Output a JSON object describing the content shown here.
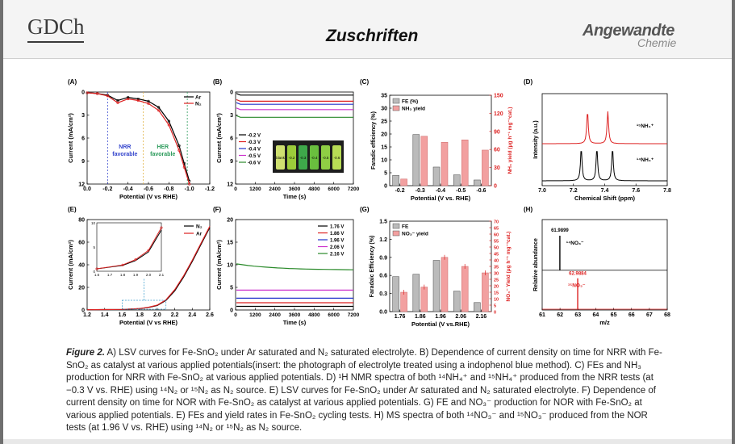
{
  "header": {
    "society": "GDCh",
    "section": "Zuschriften",
    "journal_main": "Angewandte",
    "journal_sub": "Chemie"
  },
  "figure": {
    "panels": {
      "A": {
        "label": "(A)",
        "chart_data": {
          "type": "line",
          "xlabel": "Potential (V vs RHE)",
          "ylabel": "Current (mA/cm²)",
          "xlim": [
            0.0,
            -1.2
          ],
          "ylim": [
            0,
            12
          ],
          "x_ticks": [
            "0.0",
            "-0.2",
            "-0.4",
            "-0.6",
            "-0.8",
            "-1.0",
            "-1.2"
          ],
          "y_ticks": [
            "0",
            "3",
            "6",
            "9",
            "12"
          ],
          "legend": "top-right",
          "series": [
            {
              "name": "Ar",
              "color": "#000000",
              "x": [
                0.0,
                -0.1,
                -0.2,
                -0.3,
                -0.4,
                -0.5,
                -0.6,
                -0.7,
                -0.8,
                -0.9,
                -0.95,
                -1.0
              ],
              "y": [
                0.1,
                0.2,
                0.4,
                1.1,
                0.7,
                0.9,
                1.2,
                2.0,
                3.8,
                7.0,
                9.3,
                11.6
              ]
            },
            {
              "name": "N₂",
              "color": "#dd2222",
              "x": [
                0.0,
                -0.1,
                -0.2,
                -0.3,
                -0.4,
                -0.5,
                -0.6,
                -0.7,
                -0.8,
                -0.9,
                -0.95,
                -1.0
              ],
              "y": [
                0.1,
                0.2,
                0.5,
                1.4,
                0.9,
                1.1,
                1.5,
                2.4,
                4.3,
                7.6,
                9.8,
                12.0
              ]
            }
          ],
          "vlines": [
            -0.2,
            -0.55,
            -0.98
          ],
          "annotations": [
            {
              "text": "NRR",
              "line2": "favorable"
            },
            {
              "text": "HER",
              "line2": "favorable"
            }
          ]
        }
      },
      "B": {
        "label": "(B)",
        "chart_data": {
          "type": "line",
          "xlabel": "Time (s)",
          "ylabel": "Current (mA/cm²)",
          "xlim": [
            0,
            7200
          ],
          "ylim": [
            0,
            12
          ],
          "x_ticks": [
            "0",
            "1200",
            "2400",
            "3600",
            "4800",
            "6000",
            "7200"
          ],
          "y_ticks": [
            "0",
            "3",
            "6",
            "9",
            "12"
          ],
          "legend": "bottom-left",
          "series": [
            {
              "name": "-0.2 V",
              "color": "#000000",
              "value": 0.4
            },
            {
              "name": "-0.3 V",
              "color": "#dd2222",
              "value": 1.2
            },
            {
              "name": "-0.4 V",
              "color": "#2233cc",
              "value": 1.6
            },
            {
              "name": "-0.5 V",
              "color": "#cc33cc",
              "value": 2.3
            },
            {
              "name": "-0.6 V",
              "color": "#2a8a2a",
              "value": 3.3
            }
          ],
          "inset_labels": [
            "blank",
            "-0.2",
            "-0.3",
            "-0.4",
            "-0.5",
            "-0.6"
          ]
        }
      },
      "C": {
        "label": "(C)",
        "chart_data": {
          "type": "bar",
          "xlabel": "Potential (V vs. RHE)",
          "ylabel": "Faradic efficiency (%)",
          "ylabel_right": "NH₃ yield (μg h⁻¹ mg⁻¹cat.)",
          "categories": [
            "-0.2",
            "-0.3",
            "-0.4",
            "-0.5",
            "-0.6"
          ],
          "ylim": [
            0,
            35
          ],
          "ylim_right": [
            0,
            150
          ],
          "y_ticks": [
            "0",
            "5",
            "10",
            "15",
            "20",
            "25",
            "30",
            "35"
          ],
          "y_ticks_right": [
            "0",
            "30",
            "60",
            "90",
            "120",
            "150"
          ],
          "legend": "top-left",
          "series": [
            {
              "name": "FE (%)",
              "color": "#bbbbbb",
              "axis": "left",
              "values": [
                4.0,
                19.8,
                7.2,
                4.2,
                2.2
              ]
            },
            {
              "name": "NH₃ yield",
              "color": "#f2a0a0",
              "axis": "right",
              "values": [
                11,
                82,
                72,
                76,
                59
              ]
            }
          ]
        }
      },
      "D": {
        "label": "(D)",
        "chart_data": {
          "type": "line",
          "xlabel": "Chemical Shift (ppm)",
          "ylabel": "Intensity (a.u.)",
          "xlim": [
            7.0,
            7.8
          ],
          "x_ticks": [
            "7.0",
            "7.2",
            "7.4",
            "7.6",
            "7.8"
          ],
          "series": [
            {
              "name": "¹⁵NH₄⁺",
              "color": "#dd2222",
              "peaks": [
                7.29,
                7.42
              ]
            },
            {
              "name": "¹⁴NH₄⁺",
              "color": "#000000",
              "peaks": [
                7.25,
                7.35,
                7.45
              ]
            }
          ]
        }
      },
      "E": {
        "label": "(E)",
        "chart_data": {
          "type": "line",
          "xlabel": "Potential (V vs RHE)",
          "ylabel": "Current (mA/cm²)",
          "xlim": [
            1.2,
            2.6
          ],
          "ylim": [
            0,
            80
          ],
          "x_ticks": [
            "1.2",
            "1.4",
            "1.6",
            "1.8",
            "2.0",
            "2.2",
            "2.4",
            "2.6"
          ],
          "y_ticks": [
            "0",
            "20",
            "40",
            "60",
            "80"
          ],
          "legend": "top-right",
          "series": [
            {
              "name": "N₂",
              "color": "#000000",
              "x": [
                1.2,
                1.6,
                1.8,
                1.9,
                2.0,
                2.1,
                2.2,
                2.3,
                2.4,
                2.5,
                2.6
              ],
              "y": [
                0.2,
                0.5,
                1.2,
                2.2,
                4.0,
                8.5,
                17,
                29,
                43,
                58,
                73
              ]
            },
            {
              "name": "Ar",
              "color": "#dd2222",
              "x": [
                1.2,
                1.6,
                1.8,
                1.9,
                2.0,
                2.1,
                2.2,
                2.3,
                2.4,
                2.5,
                2.6
              ],
              "y": [
                0.2,
                0.5,
                1.3,
                2.4,
                4.3,
                9.0,
                18,
                30,
                44,
                59,
                74
              ]
            }
          ],
          "inset": {
            "x_ticks": [
              "1.6",
              "1.7",
              "1.8",
              "1.9",
              "2.0",
              "2.1"
            ],
            "y_ticks": [
              "0",
              "5",
              "10"
            ]
          }
        }
      },
      "F": {
        "label": "(F)",
        "chart_data": {
          "type": "line",
          "xlabel": "Time (s)",
          "ylabel": "Current (mA/cm²)",
          "xlim": [
            0,
            7200
          ],
          "ylim": [
            0,
            20
          ],
          "x_ticks": [
            "0",
            "1200",
            "2400",
            "3600",
            "4800",
            "6000",
            "7200"
          ],
          "y_ticks": [
            "0",
            "5",
            "10",
            "15",
            "20"
          ],
          "legend": "top-right",
          "series": [
            {
              "name": "1.76 V",
              "color": "#000000",
              "start": 0.8,
              "end": 0.8
            },
            {
              "name": "1.86 V",
              "color": "#dd2222",
              "start": 1.6,
              "end": 1.6
            },
            {
              "name": "1.96 V",
              "color": "#2233cc",
              "start": 2.6,
              "end": 2.6
            },
            {
              "name": "2.06 V",
              "color": "#cc33cc",
              "start": 4.4,
              "end": 4.4
            },
            {
              "name": "2.16 V",
              "color": "#2a8a2a",
              "start": 10.2,
              "end": 8.9
            }
          ]
        }
      },
      "G": {
        "label": "(G)",
        "chart_data": {
          "type": "bar",
          "xlabel": "Potential (V vs.RHE)",
          "ylabel": "Faradaic Efficiency (%)",
          "ylabel_right": "NO₃⁻ Yield (μg h⁻¹ mg⁻¹cat.)",
          "categories": [
            "1.76",
            "1.86",
            "1.96",
            "2.06",
            "2.16"
          ],
          "ylim": [
            0,
            1.5
          ],
          "ylim_right": [
            0,
            70
          ],
          "y_ticks": [
            "0.0",
            "0.3",
            "0.6",
            "0.9",
            "1.2",
            "1.5"
          ],
          "y_ticks_right": [
            "0",
            "5",
            "10",
            "15",
            "20",
            "25",
            "30",
            "35",
            "40",
            "45",
            "50",
            "55",
            "60",
            "65",
            "70"
          ],
          "legend": "top-left",
          "series": [
            {
              "name": "FE",
              "color": "#bbbbbb",
              "axis": "left",
              "values": [
                0.58,
                0.62,
                0.85,
                0.34,
                0.15
              ]
            },
            {
              "name": "NO₃⁻ yield",
              "color": "#f2a0a0",
              "axis": "right",
              "values": [
                15,
                19,
                42,
                35,
                30
              ]
            }
          ]
        }
      },
      "H": {
        "label": "(H)",
        "chart_data": {
          "type": "bar",
          "xlabel": "m/z",
          "ylabel": "Relative abundance",
          "xlim": [
            61,
            68
          ],
          "x_ticks": [
            "61",
            "62",
            "63",
            "64",
            "65",
            "66",
            "67",
            "68"
          ],
          "series": [
            {
              "name": "¹⁴NO₃⁻",
              "color": "#000000",
              "peak": 61.9899,
              "peak_label": "61.9899"
            },
            {
              "name": "¹⁵NO₃⁻",
              "color": "#dd2222",
              "peak": 62.9884,
              "peak_label": "62.9884"
            }
          ]
        }
      }
    }
  },
  "caption": {
    "lead": "Figure 2.",
    "text": " A) LSV curves for Fe-SnO₂ under Ar saturated and N₂ saturated electrolyte. B) Dependence of current density on time for NRR with Fe-SnO₂ as catalyst at various applied potentials(insert: the photograph of electrolyte treated using a indophenol blue method). C) FEs and NH₃ production for NRR with Fe-SnO₂ at various applied potentials. D) ¹H NMR spectra of both ¹⁴NH₄⁺ and ¹⁵NH₄⁺ produced from the NRR tests (at −0.3 V vs. RHE) using ¹⁴N₂ or ¹⁵N₂ as N₂ source. E) LSV curves for Fe-SnO₂ under Ar saturated and N₂ saturated electrolyte. F) Dependence of current density on time for NOR with Fe-SnO₂ as catalyst at various applied potentials. G) FE and NO₃⁻ production for NOR with Fe-SnO₂ at various applied potentials. E) FEs and yield rates in Fe-SnO₂ cycling tests. H) MS spectra of both ¹⁴NO₃⁻ and ¹⁵NO₃⁻ produced from the NOR tests (at 1.96 V vs. RHE) using ¹⁴N₂ or ¹⁵N₂ as N₂ source."
  }
}
